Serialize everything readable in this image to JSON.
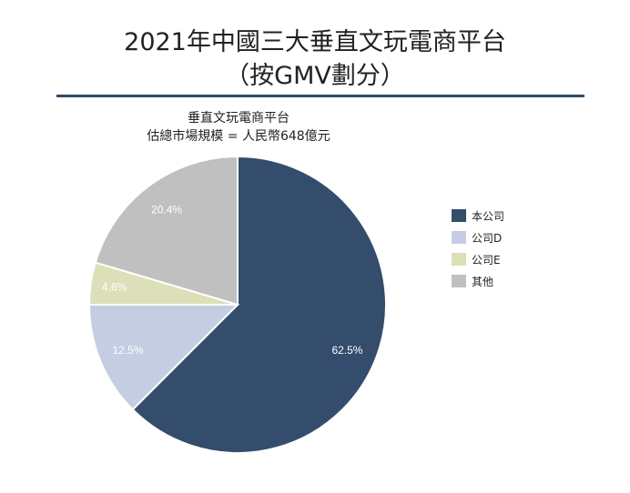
{
  "title": {
    "line1": "2021年中國三大垂直文玩電商平台",
    "line2": "（按GMV劃分）"
  },
  "chart_data": {
    "type": "pie",
    "subtitle_line1": "垂直文玩電商平台",
    "subtitle_line2": "估總市場規模 = 人民幣648億元",
    "slices": [
      {
        "name": "本公司",
        "value": 62.5,
        "label": "62.5%",
        "color": "#344d6c"
      },
      {
        "name": "公司D",
        "value": 12.5,
        "label": "12.5%",
        "color": "#c4cde1"
      },
      {
        "name": "公司E",
        "value": 4.6,
        "label": "4.6%",
        "color": "#dcdfb8"
      },
      {
        "name": "其他",
        "value": 20.4,
        "label": "20.4%",
        "color": "#c0c0c0"
      }
    ],
    "legend_position": "right",
    "start": "top",
    "direction": "clockwise"
  }
}
